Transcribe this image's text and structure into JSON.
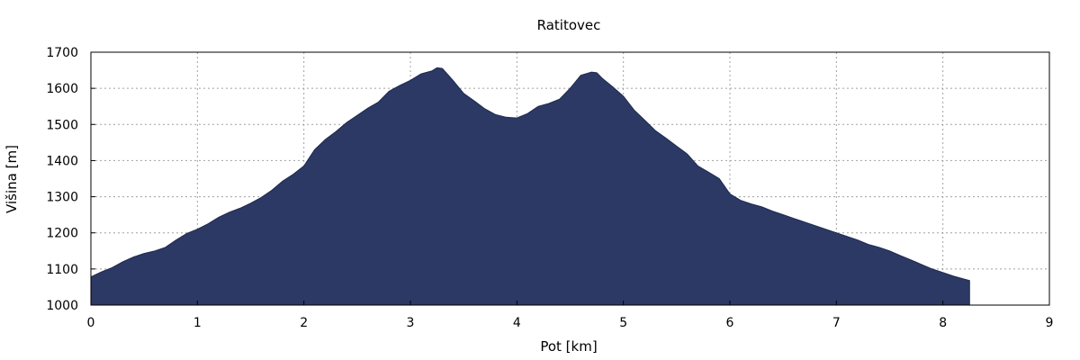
{
  "chart_data": {
    "type": "area",
    "title": "Ratitovec",
    "xlabel": "Pot [km]",
    "ylabel": "Višina [m]",
    "xlim": [
      0,
      9
    ],
    "ylim": [
      1000,
      1700
    ],
    "x_ticks": [
      0,
      1,
      2,
      3,
      4,
      5,
      6,
      7,
      8,
      9
    ],
    "y_ticks": [
      1000,
      1100,
      1200,
      1300,
      1400,
      1500,
      1600,
      1700
    ],
    "grid": true,
    "fill_color": "#2c3964",
    "series": [
      {
        "x": [
          0,
          0.1,
          0.2,
          0.3,
          0.4,
          0.5,
          0.6,
          0.7,
          0.8,
          0.9,
          1.0,
          1.1,
          1.2,
          1.3,
          1.4,
          1.5,
          1.6,
          1.7,
          1.8,
          1.9,
          2.0,
          2.1,
          2.2,
          2.3,
          2.4,
          2.5,
          2.6,
          2.7,
          2.8,
          2.9,
          3.0,
          3.1,
          3.2,
          3.25,
          3.3,
          3.4,
          3.5,
          3.6,
          3.7,
          3.8,
          3.9,
          4.0,
          4.1,
          4.2,
          4.3,
          4.4,
          4.5,
          4.6,
          4.7,
          4.75,
          4.8,
          4.9,
          5.0,
          5.1,
          5.2,
          5.3,
          5.4,
          5.5,
          5.6,
          5.7,
          5.8,
          5.9,
          6.0,
          6.1,
          6.2,
          6.3,
          6.4,
          6.5,
          6.6,
          6.7,
          6.8,
          6.9,
          7.0,
          7.1,
          7.2,
          7.3,
          7.4,
          7.5,
          7.6,
          7.7,
          7.8,
          7.9,
          8.0,
          8.1,
          8.2,
          8.25
        ],
        "y": [
          1078,
          1092,
          1104,
          1120,
          1133,
          1143,
          1150,
          1160,
          1180,
          1198,
          1210,
          1225,
          1243,
          1257,
          1268,
          1282,
          1298,
          1318,
          1343,
          1362,
          1385,
          1430,
          1458,
          1480,
          1505,
          1525,
          1545,
          1562,
          1592,
          1608,
          1622,
          1640,
          1648,
          1657,
          1655,
          1622,
          1586,
          1565,
          1543,
          1527,
          1520,
          1518,
          1530,
          1550,
          1558,
          1570,
          1600,
          1636,
          1645,
          1643,
          1628,
          1604,
          1578,
          1540,
          1512,
          1483,
          1462,
          1440,
          1418,
          1385,
          1368,
          1350,
          1308,
          1290,
          1280,
          1272,
          1260,
          1250,
          1240,
          1230,
          1220,
          1210,
          1200,
          1190,
          1180,
          1168,
          1160,
          1150,
          1137,
          1125,
          1112,
          1100,
          1090,
          1080,
          1072,
          1068
        ]
      }
    ]
  }
}
